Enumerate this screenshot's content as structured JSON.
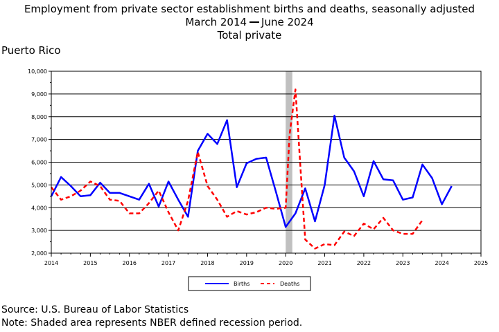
{
  "chart_data": {
    "type": "line",
    "title": "Employment from private sector establishment births and deaths, seasonally adjusted",
    "subtitle_start": "March 2014",
    "subtitle_end": "June 2024",
    "subtitle2": "Total private",
    "region_label": "Puerto Rico",
    "ylim": [
      2000,
      10000
    ],
    "xlim": [
      2014,
      2025
    ],
    "y_ticks": [
      "2,000",
      "3,000",
      "4,000",
      "5,000",
      "6,000",
      "7,000",
      "8,000",
      "9,000",
      "10,000"
    ],
    "y_tick_values": [
      2000,
      3000,
      4000,
      5000,
      6000,
      7000,
      8000,
      9000,
      10000
    ],
    "x_ticks": [
      "2014",
      "2015",
      "2016",
      "2017",
      "2018",
      "2019",
      "2020",
      "2021",
      "2022",
      "2023",
      "2024",
      "2025"
    ],
    "x_tick_values": [
      2014,
      2015,
      2016,
      2017,
      2018,
      2019,
      2020,
      2021,
      2022,
      2023,
      2024,
      2025
    ],
    "grid": "horizontal",
    "legend_placement": "bottom",
    "recession_band": {
      "start": 2020.0,
      "end": 2020.17,
      "color": "#c0c0c0"
    },
    "series": [
      {
        "name": "Births",
        "color": "#0000ff",
        "style": "solid",
        "x": [
          2014.0,
          2014.25,
          2014.5,
          2014.75,
          2015.0,
          2015.25,
          2015.5,
          2015.75,
          2016.0,
          2016.25,
          2016.5,
          2016.75,
          2017.0,
          2017.25,
          2017.5,
          2017.75,
          2018.0,
          2018.25,
          2018.5,
          2018.75,
          2019.0,
          2019.25,
          2019.5,
          2019.75,
          2020.0,
          2020.25,
          2020.5,
          2020.75,
          2021.0,
          2021.25,
          2021.5,
          2021.75,
          2022.0,
          2022.25,
          2022.5,
          2022.75,
          2023.0,
          2023.25,
          2023.5,
          2023.75,
          2024.0,
          2024.25
        ],
        "values": [
          4500,
          5350,
          4950,
          4500,
          4550,
          5100,
          4650,
          4650,
          4500,
          4350,
          5050,
          4050,
          5150,
          4350,
          3600,
          6500,
          7250,
          6800,
          7850,
          4900,
          5950,
          6150,
          6200,
          4700,
          3150,
          3750,
          4850,
          3400,
          5000,
          8050,
          6200,
          5600,
          4500,
          6050,
          5250,
          5200,
          4350,
          4450,
          5900,
          5300,
          4150,
          4950
        ]
      },
      {
        "name": "Deaths",
        "color": "#ff0000",
        "style": "dashed",
        "x": [
          2014.0,
          2014.25,
          2014.5,
          2014.75,
          2015.0,
          2015.25,
          2015.5,
          2015.75,
          2016.0,
          2016.25,
          2016.5,
          2016.75,
          2017.0,
          2017.25,
          2017.5,
          2017.75,
          2018.0,
          2018.25,
          2018.5,
          2018.75,
          2019.0,
          2019.25,
          2019.5,
          2019.75,
          2020.0,
          2020.1,
          2020.25,
          2020.4,
          2020.5,
          2020.75,
          2021.0,
          2021.25,
          2021.5,
          2021.75,
          2022.0,
          2022.25,
          2022.5,
          2022.75,
          2023.0,
          2023.25,
          2023.5
        ],
        "values": [
          4900,
          4350,
          4500,
          4750,
          5150,
          4950,
          4350,
          4300,
          3750,
          3750,
          4200,
          4750,
          3800,
          3000,
          4300,
          6450,
          4950,
          4350,
          3600,
          3850,
          3700,
          3800,
          4000,
          3950,
          4000,
          7200,
          9200,
          5200,
          2600,
          2200,
          2400,
          2350,
          2950,
          2750,
          3300,
          3050,
          3550,
          3000,
          2850,
          2850,
          3450
        ]
      }
    ],
    "legend": {
      "births_label": "Births",
      "deaths_label": "Deaths"
    }
  },
  "footer": {
    "source": "Source: U.S. Bureau of Labor Statistics",
    "note": "Note: Shaded area represents NBER defined recession period."
  }
}
